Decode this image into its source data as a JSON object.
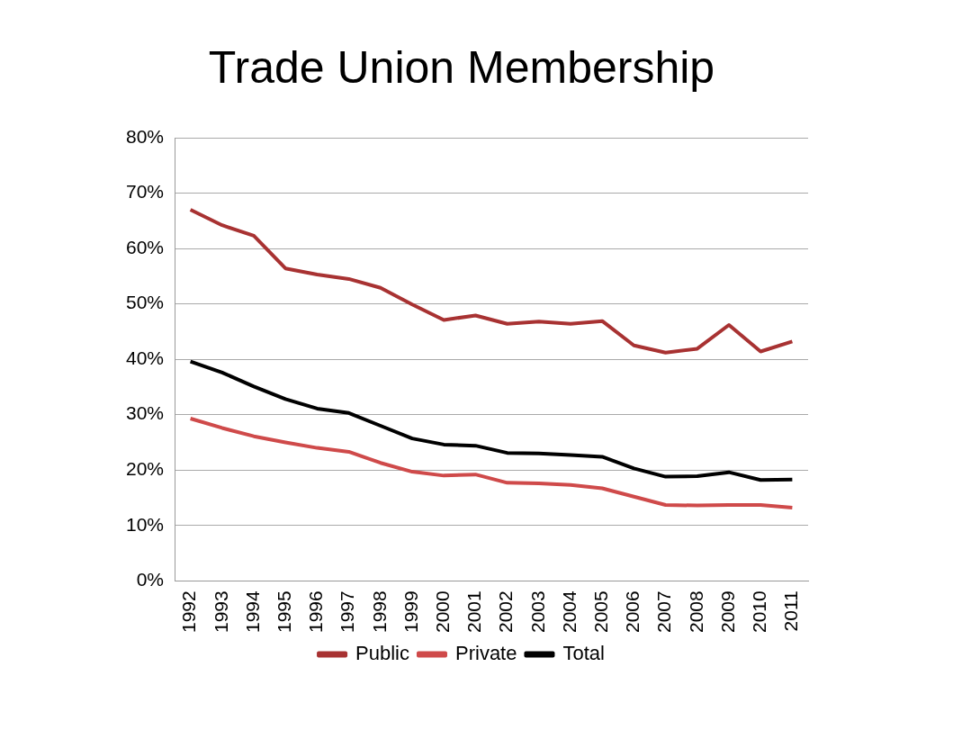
{
  "chart_data": {
    "type": "line",
    "title": "Trade Union Membership",
    "categories": [
      "1992",
      "1993",
      "1994",
      "1995",
      "1996",
      "1997",
      "1998",
      "1999",
      "2000",
      "2001",
      "2002",
      "2003",
      "2004",
      "2005",
      "2006",
      "2007",
      "2008",
      "2009",
      "2010",
      "2011"
    ],
    "series": [
      {
        "name": "Public",
        "color": "#a83232",
        "values": [
          67.0,
          64.2,
          62.3,
          56.4,
          55.3,
          54.5,
          52.9,
          49.9,
          47.1,
          47.9,
          46.4,
          46.8,
          46.4,
          46.9,
          42.5,
          41.2,
          41.9,
          46.2,
          41.4,
          43.2
        ]
      },
      {
        "name": "Private",
        "color": "#cf4a4a",
        "values": [
          29.3,
          27.6,
          26.1,
          25.0,
          24.0,
          23.3,
          21.3,
          19.7,
          19.0,
          19.2,
          17.7,
          17.6,
          17.3,
          16.7,
          15.2,
          13.7,
          13.6,
          13.7,
          13.7,
          13.2
        ]
      },
      {
        "name": "Total",
        "color": "#000000",
        "values": [
          39.6,
          37.6,
          35.1,
          32.8,
          31.1,
          30.3,
          28.0,
          25.7,
          24.6,
          24.4,
          23.1,
          23.0,
          22.7,
          22.4,
          20.3,
          18.8,
          18.9,
          19.6,
          18.2,
          18.3
        ]
      }
    ],
    "ylim": [
      0,
      80
    ],
    "yticks": [
      {
        "value": 0,
        "label": "0%"
      },
      {
        "value": 10,
        "label": "10%"
      },
      {
        "value": 20,
        "label": "20%"
      },
      {
        "value": 30,
        "label": "30%"
      },
      {
        "value": 40,
        "label": "40%"
      },
      {
        "value": 50,
        "label": "50%"
      },
      {
        "value": 60,
        "label": "60%"
      },
      {
        "value": 70,
        "label": "70%"
      },
      {
        "value": 80,
        "label": "80%"
      }
    ],
    "grid": "y",
    "legend": "bottom",
    "marker": "none",
    "line_style": "solid"
  }
}
